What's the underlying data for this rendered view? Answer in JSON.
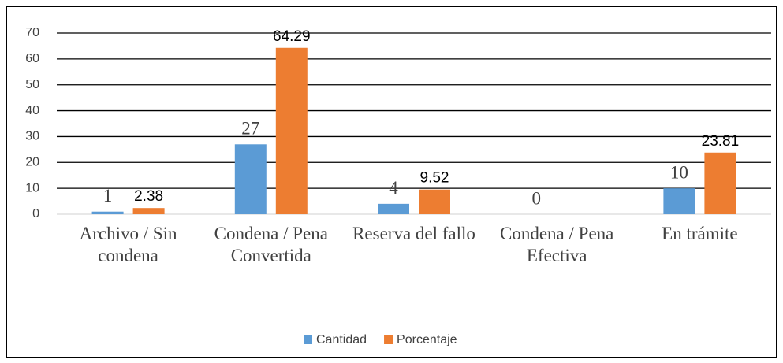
{
  "chart_data": {
    "type": "bar",
    "categories": [
      "Archivo / Sin condena",
      "Condena / Pena Convertida",
      "Reserva del fallo",
      "Condena / Pena Efectiva",
      "En trámite"
    ],
    "series": [
      {
        "name": "Cantidad",
        "color": "#5b9bd5",
        "values": [
          1,
          27,
          4,
          0,
          10
        ]
      },
      {
        "name": "Porcentaje",
        "color": "#ed7d31",
        "values": [
          2.38,
          64.29,
          9.52,
          null,
          23.81
        ]
      }
    ],
    "ylim": [
      0,
      70
    ],
    "yticks": [
      0,
      10,
      20,
      30,
      40,
      50,
      60,
      70
    ],
    "grid": true,
    "legend": "bottom"
  }
}
